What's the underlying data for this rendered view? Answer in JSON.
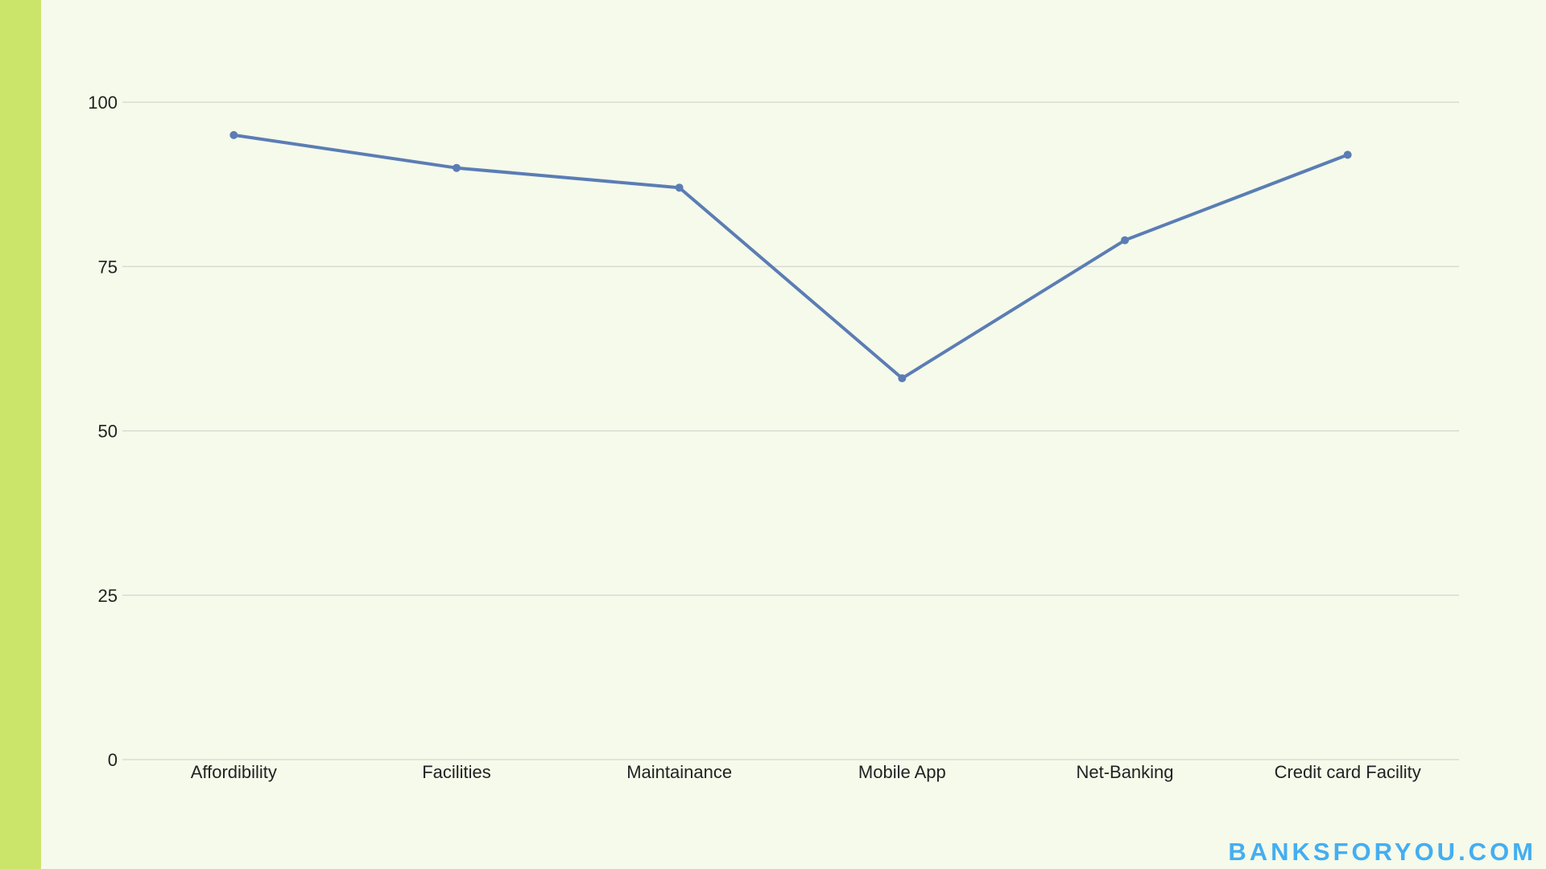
{
  "colors": {
    "background": "#f5faeb",
    "accent_bar": "#cbe46a",
    "line": "#5b7db4",
    "gridline": "#d3d6cc",
    "watermark": "#44aef0"
  },
  "watermark": "BANKSFORYOU.COM",
  "chart_data": {
    "type": "line",
    "title": "",
    "xlabel": "",
    "ylabel": "",
    "categories": [
      "Affordibility",
      "Facilities",
      "Maintainance",
      "Mobile App",
      "Net-Banking",
      "Credit card Facility"
    ],
    "series": [
      {
        "values": [
          95,
          90,
          87,
          58,
          79,
          92
        ]
      }
    ],
    "ylim": [
      0,
      100
    ],
    "yticks": [
      "0",
      "25",
      "50",
      "75",
      "100"
    ],
    "grid": true,
    "legend": "none"
  }
}
